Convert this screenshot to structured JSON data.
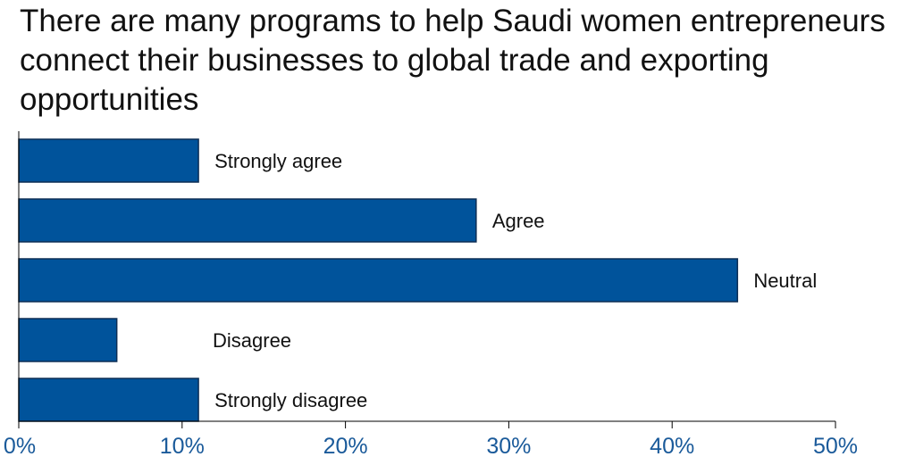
{
  "chart_data": {
    "type": "bar",
    "orientation": "horizontal",
    "title": "There are many programs to help Saudi women entrepreneurs connect their businesses to global trade and exporting opportunities",
    "categories": [
      "Strongly agree",
      "Agree",
      "Neutral",
      "Disagree",
      "Strongly disagree"
    ],
    "values": [
      11,
      28,
      44,
      6,
      11
    ],
    "value_unit": "%",
    "xlim": [
      0,
      50
    ],
    "xticks": [
      0,
      10,
      20,
      30,
      40,
      50
    ],
    "xtick_labels": [
      "0%",
      "10%",
      "20%",
      "30%",
      "40%",
      "50%"
    ],
    "xlabel": "",
    "ylabel": "",
    "grid": false,
    "legend": "none",
    "bar_color": "#00539b",
    "bar_edge_color": "#0d2e55",
    "tick_label_color": "#1a5a9a"
  }
}
